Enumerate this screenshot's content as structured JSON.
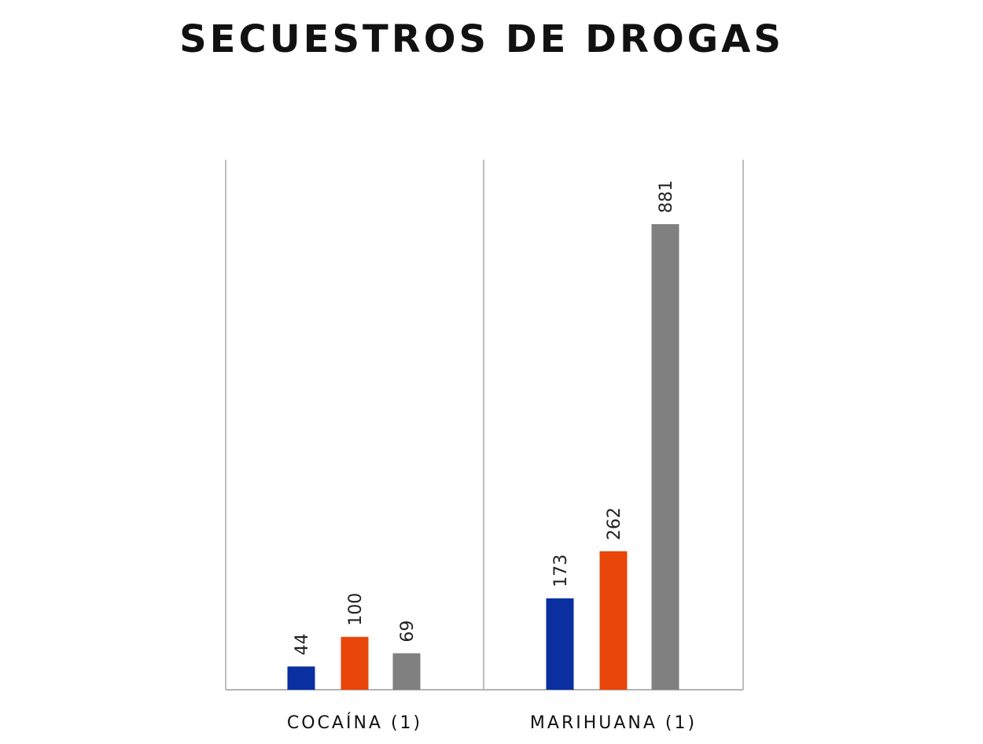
{
  "chart_data": {
    "type": "bar",
    "title": "SECUESTROS DE DROGAS",
    "categories": [
      "COCAÍNA (1)",
      "MARIHUANA (1)"
    ],
    "series": [
      {
        "values": [
          44,
          173
        ],
        "color": "#0a2fa0"
      },
      {
        "values": [
          100,
          262
        ],
        "color": "#e8460a"
      },
      {
        "values": [
          69,
          881
        ],
        "color": "#808080"
      }
    ],
    "xlabel": "",
    "ylabel": "",
    "ylim": [
      0,
      881
    ],
    "grid": false,
    "legend": "none",
    "data_labels": true,
    "data_label_rotation": "vertical"
  }
}
